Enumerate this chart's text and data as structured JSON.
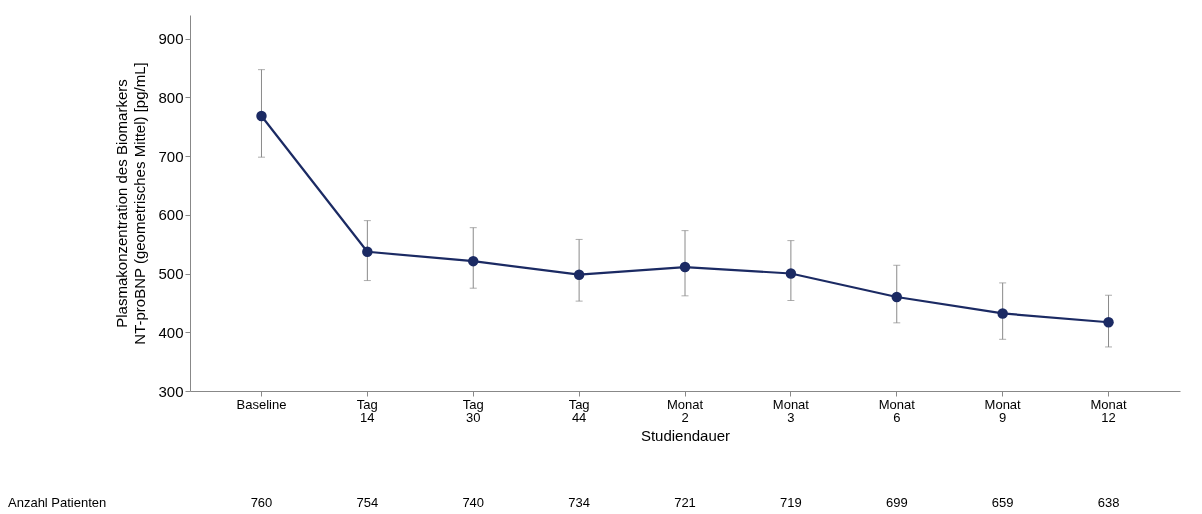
{
  "chart_data": {
    "type": "line",
    "xlabel": "Studiendauer",
    "ylabel": "Plasmakonzentration des Biomarkers\nNT-proBNP (geometrisches Mittel) [pg/mL]",
    "categories": [
      "Baseline",
      "Tag 14",
      "Tag 30",
      "Tag 44",
      "Monat 2",
      "Monat 3",
      "Monat 6",
      "Monat 9",
      "Monat 12"
    ],
    "series": [
      {
        "color": "#1b2a63",
        "values": [
          768,
          537,
          521,
          498,
          511,
          500,
          460,
          432,
          417
        ],
        "errors": [
          [
            698,
            847
          ],
          [
            488,
            590
          ],
          [
            475,
            578
          ],
          [
            453,
            558
          ],
          [
            462,
            573
          ],
          [
            454,
            556
          ],
          [
            416,
            514
          ],
          [
            388,
            484
          ],
          [
            375,
            463
          ]
        ]
      }
    ],
    "ylim": [
      300,
      940
    ],
    "yticks": [
      300,
      400,
      500,
      600,
      700,
      800,
      900
    ],
    "marker": "circle",
    "line_style": "solid",
    "grid": false,
    "annotations": [
      "Anzahl Patienten",
      "760",
      "754",
      "740",
      "734",
      "721",
      "719",
      "699",
      "659",
      "638"
    ]
  }
}
